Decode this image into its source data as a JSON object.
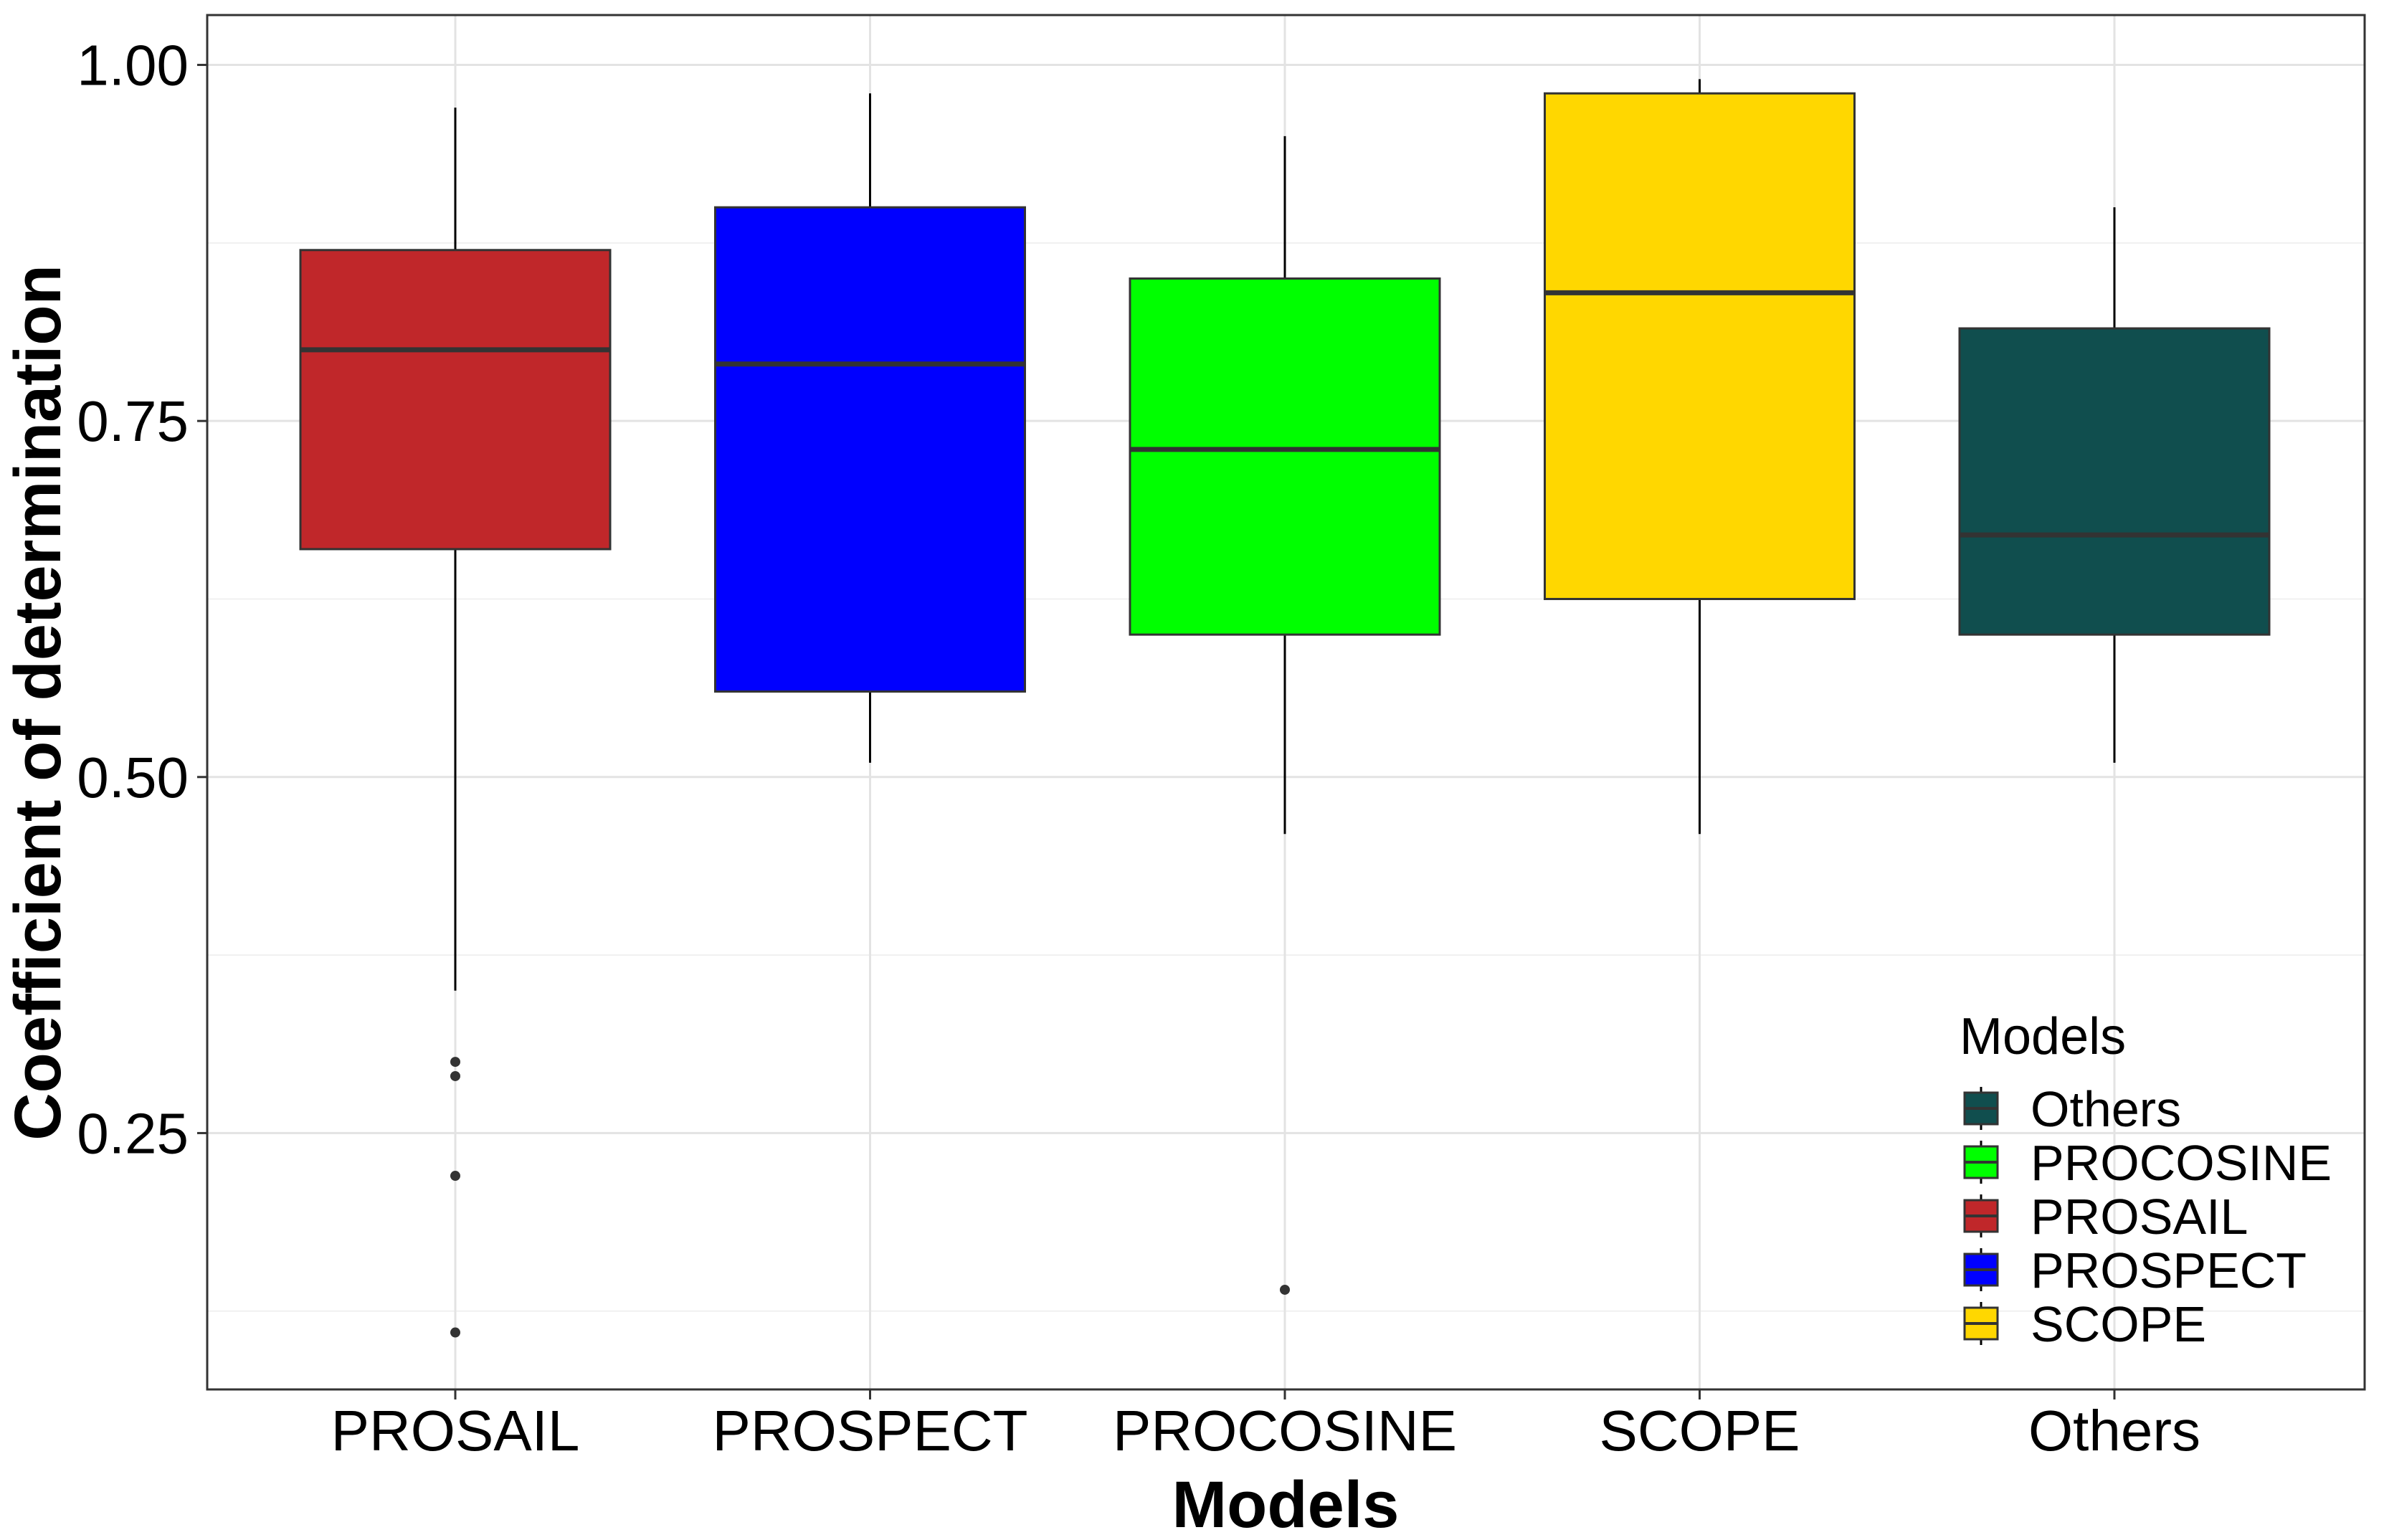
{
  "chart_data": {
    "type": "boxplot",
    "title": "",
    "xlabel": "Models",
    "ylabel": "Coefficient of determination",
    "ylim": [
      0.07,
      1.035
    ],
    "yticks": [
      0.25,
      0.5,
      0.75,
      1.0
    ],
    "ytick_labels": [
      "0.25",
      "0.50",
      "0.75",
      "1.00"
    ],
    "grid": true,
    "categories": [
      "PROSAIL",
      "PROSPECT",
      "PROCOSINE",
      "SCOPE",
      "Others"
    ],
    "boxes": [
      {
        "name": "PROSAIL",
        "color": "#C0272A",
        "whisker_low": 0.35,
        "q1": 0.66,
        "median": 0.8,
        "q3": 0.87,
        "whisker_high": 0.97,
        "outliers": [
          0.3,
          0.29,
          0.22,
          0.11
        ]
      },
      {
        "name": "PROSPECT",
        "color": "#0000FF",
        "whisker_low": 0.51,
        "q1": 0.56,
        "median": 0.79,
        "q3": 0.9,
        "whisker_high": 0.98,
        "outliers": []
      },
      {
        "name": "PROCOSINE",
        "color": "#00FF00",
        "whisker_low": 0.46,
        "q1": 0.6,
        "median": 0.73,
        "q3": 0.85,
        "whisker_high": 0.95,
        "outliers": [
          0.14
        ]
      },
      {
        "name": "SCOPE",
        "color": "#FFD700",
        "whisker_low": 0.46,
        "q1": 0.625,
        "median": 0.84,
        "q3": 0.98,
        "whisker_high": 0.99,
        "outliers": []
      },
      {
        "name": "Others",
        "color": "#104E4E",
        "whisker_low": 0.51,
        "q1": 0.6,
        "median": 0.67,
        "q3": 0.815,
        "whisker_high": 0.9,
        "outliers": []
      }
    ],
    "legend": {
      "title": "Models",
      "position": "bottom-right",
      "entries": [
        {
          "label": "Others",
          "color": "#104E4E"
        },
        {
          "label": "PROCOSINE",
          "color": "#00FF00"
        },
        {
          "label": "PROSAIL",
          "color": "#C0272A"
        },
        {
          "label": "PROSPECT",
          "color": "#0000FF"
        },
        {
          "label": "SCOPE",
          "color": "#FFD700"
        }
      ]
    }
  }
}
